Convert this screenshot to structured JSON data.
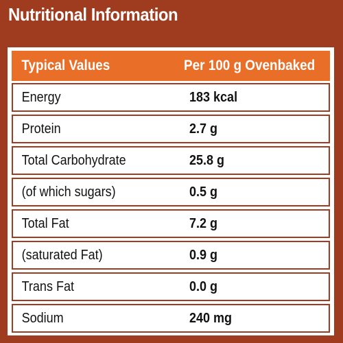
{
  "title": "Nutritional Information",
  "table": {
    "headers": [
      "Typical Values",
      "Per 100 g Ovenbaked"
    ],
    "rows": [
      [
        "Energy",
        "183 kcal"
      ],
      [
        "Protein",
        "2.7 g"
      ],
      [
        "Total Carbohydrate",
        "25.8 g"
      ],
      [
        "(of which sugars)",
        "0.5 g"
      ],
      [
        "Total Fat",
        "7.2 g"
      ],
      [
        "(saturated Fat)",
        "0.9 g"
      ],
      [
        "Trans Fat",
        "0.0 g"
      ],
      [
        "Sodium",
        "240 mg"
      ]
    ]
  },
  "colors": {
    "background": "#9f3b1f",
    "header": "#e96f28",
    "text": "#111111"
  }
}
